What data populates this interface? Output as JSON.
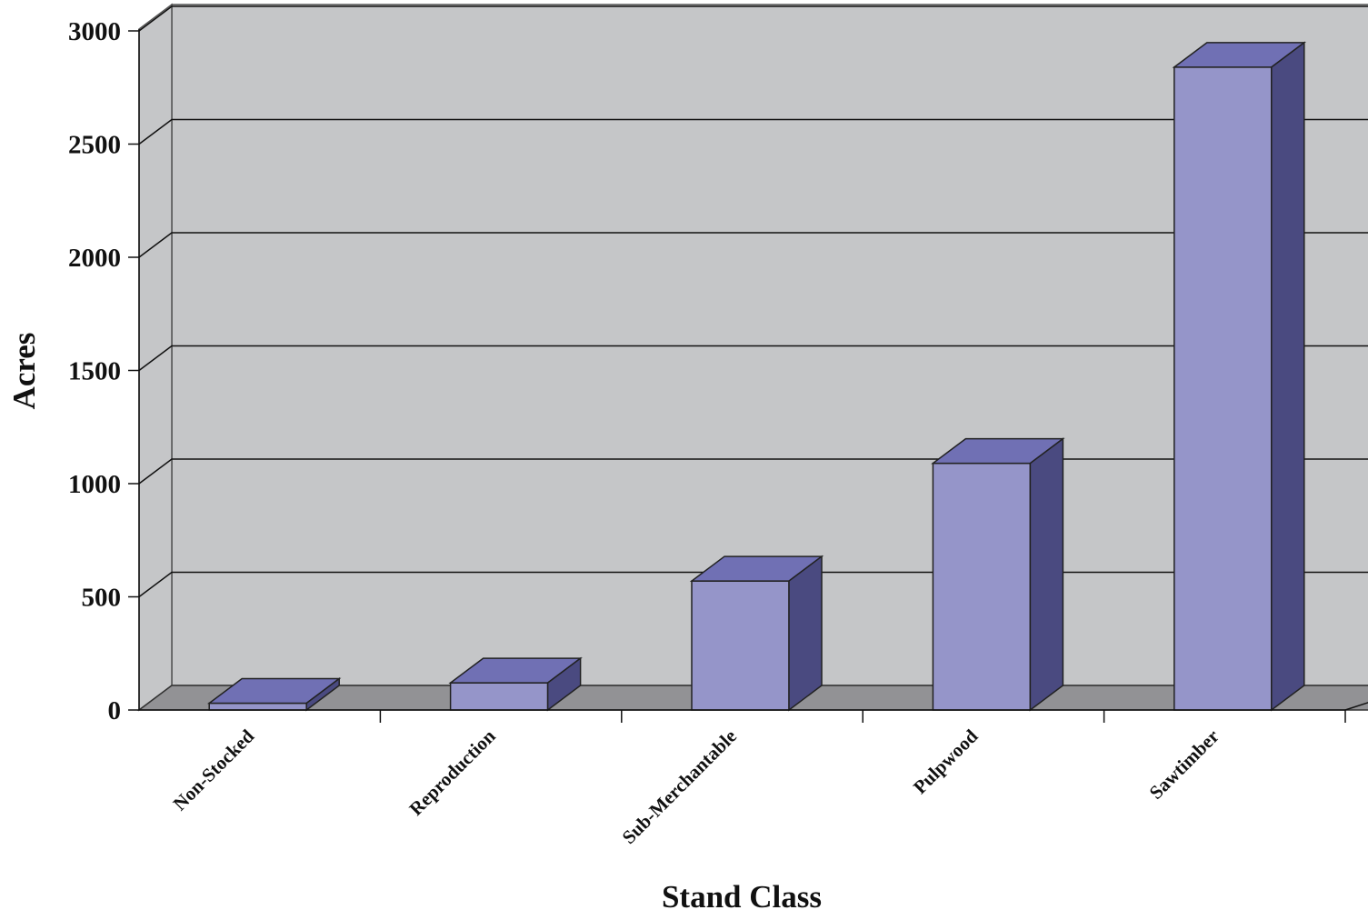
{
  "chart_data": {
    "type": "bar",
    "style": "3d-column",
    "title": "",
    "xlabel": "Stand Class",
    "ylabel": "Acres",
    "categories": [
      "Non-Stocked",
      "Reproduction",
      "Sub-Merchantable",
      "Pulpwood",
      "Sawtimber"
    ],
    "values": [
      30,
      120,
      570,
      1090,
      2840
    ],
    "ylim": [
      0,
      3000
    ],
    "yticks": [
      "0",
      "500",
      "1000",
      "1500",
      "2000",
      "2500",
      "3000"
    ],
    "grid": true,
    "legend": "none",
    "colors": {
      "bar_front": "#9595c9",
      "bar_top": "#7070b4",
      "bar_side": "#4a4a80",
      "back_wall": "#c5c6c8",
      "floor": "#929295",
      "gridline": "#111111"
    }
  }
}
